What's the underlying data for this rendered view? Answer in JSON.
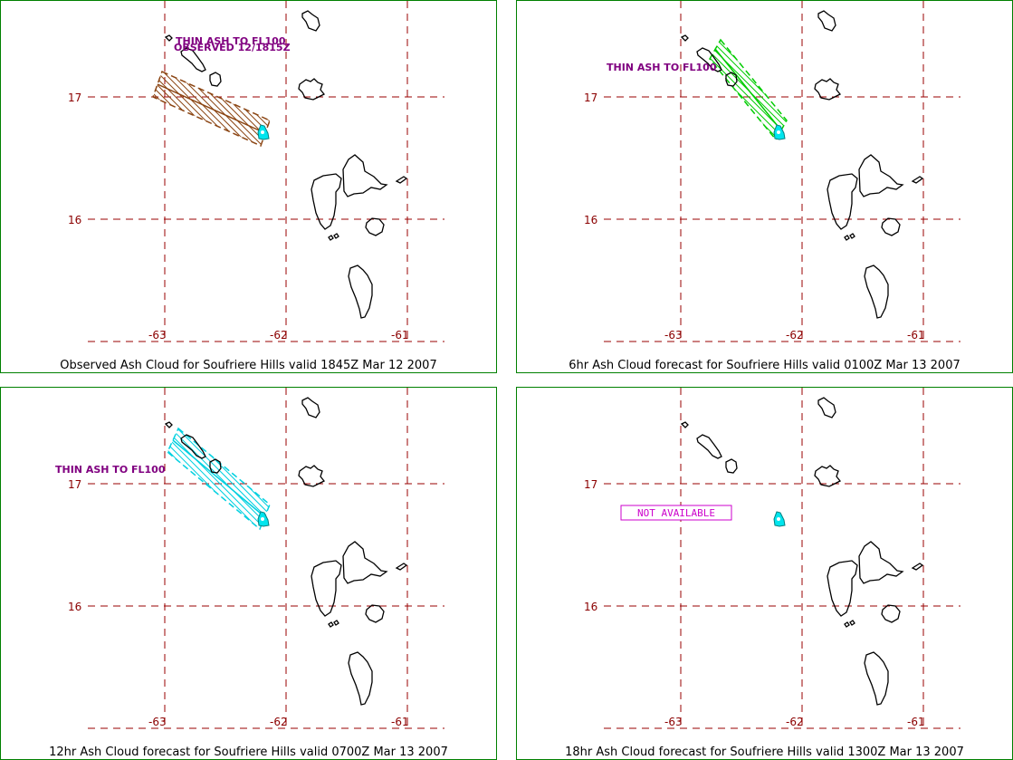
{
  "colors": {
    "frame": "#008000",
    "grid": "#990000",
    "tick_label": "#8b0000",
    "coast": "#000000",
    "ash_label": "#800080",
    "observed_hatch": "#8b4513",
    "forecast6_hatch": "#00cc00",
    "forecast12_hatch": "#00d0e0",
    "volcano": "#00e5ee",
    "na_box": "#cc00cc"
  },
  "axes": {
    "lat_labels": [
      "17",
      "16"
    ],
    "lon_labels": [
      "-63",
      "-62",
      "-61"
    ]
  },
  "panels": [
    {
      "caption": "Observed Ash Cloud for Soufriere  Hills valid 1845Z Mar 12 2007",
      "ash_text": [
        "THIN ASH TO FL100",
        "OBSERVED 12/1815Z"
      ],
      "hatch": "observed_hatch",
      "na_text": ""
    },
    {
      "caption": "6hr Ash Cloud forecast for Soufriere  Hills valid 0100Z Mar 13 2007",
      "ash_text": [
        "THIN ASH TO FL100"
      ],
      "hatch": "forecast6_hatch",
      "na_text": ""
    },
    {
      "caption": "12hr Ash Cloud forecast for Soufriere  Hills valid 0700Z Mar 13 2007",
      "ash_text": [
        "THIN ASH TO FL100"
      ],
      "hatch": "forecast12_hatch",
      "na_text": ""
    },
    {
      "caption": "18hr Ash Cloud forecast for Soufriere  Hills valid 1300Z Mar 13 2007",
      "ash_text": [],
      "hatch": "",
      "na_text": "NOT AVAILABLE"
    }
  ]
}
